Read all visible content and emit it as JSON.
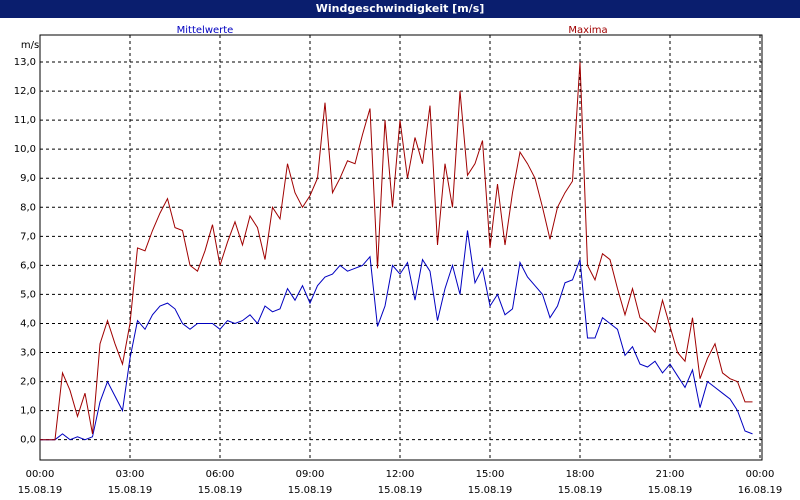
{
  "chart_data": {
    "type": "line",
    "title": "Windgeschwindigkeit [m/s]",
    "y_label": "m/s",
    "x": [
      0,
      0.25,
      0.5,
      0.75,
      1,
      1.25,
      1.5,
      1.75,
      2,
      2.25,
      2.5,
      2.75,
      3,
      3.25,
      3.5,
      3.75,
      4,
      4.25,
      4.5,
      4.75,
      5,
      5.25,
      5.5,
      5.75,
      6,
      6.25,
      6.5,
      6.75,
      7,
      7.25,
      7.5,
      7.75,
      8,
      8.25,
      8.5,
      8.75,
      9,
      9.25,
      9.5,
      9.75,
      10,
      10.25,
      10.5,
      10.75,
      11,
      11.25,
      11.5,
      11.75,
      12,
      12.25,
      12.5,
      12.75,
      13,
      13.25,
      13.5,
      13.75,
      14,
      14.25,
      14.5,
      14.75,
      15,
      15.25,
      15.5,
      15.75,
      16,
      16.25,
      16.5,
      16.75,
      17,
      17.25,
      17.5,
      17.75,
      18,
      18.25,
      18.5,
      18.75,
      19,
      19.25,
      19.5,
      19.75,
      20,
      20.25,
      20.5,
      20.75,
      21,
      21.25,
      21.5,
      21.75,
      22,
      22.25,
      22.5,
      22.75,
      23,
      23.25,
      23.5,
      23.75
    ],
    "xlim": [
      0,
      24
    ],
    "xticks": [
      {
        "value": 0,
        "label": [
          "00:00",
          "15.08.19"
        ]
      },
      {
        "value": 3,
        "label": [
          "03:00",
          "15.08.19"
        ]
      },
      {
        "value": 6,
        "label": [
          "06:00",
          "15.08.19"
        ]
      },
      {
        "value": 9,
        "label": [
          "09:00",
          "15.08.19"
        ]
      },
      {
        "value": 12,
        "label": [
          "12:00",
          "15.08.19"
        ]
      },
      {
        "value": 15,
        "label": [
          "15:00",
          "15.08.19"
        ]
      },
      {
        "value": 18,
        "label": [
          "18:00",
          "15.08.19"
        ]
      },
      {
        "value": 21,
        "label": [
          "21:00",
          "15.08.19"
        ]
      },
      {
        "value": 24,
        "label": [
          "00:00",
          "16.08.19"
        ]
      }
    ],
    "ylim": [
      -0.7,
      13.93
    ],
    "yticks": [
      {
        "value": 0,
        "label": "0,0"
      },
      {
        "value": 1,
        "label": "1,0"
      },
      {
        "value": 2,
        "label": "2,0"
      },
      {
        "value": 3,
        "label": "3,0"
      },
      {
        "value": 4,
        "label": "4,0"
      },
      {
        "value": 5,
        "label": "5,0"
      },
      {
        "value": 6,
        "label": "6,0"
      },
      {
        "value": 7,
        "label": "7,0"
      },
      {
        "value": 8,
        "label": "8,0"
      },
      {
        "value": 9,
        "label": "9,0"
      },
      {
        "value": 10,
        "label": "10,0"
      },
      {
        "value": 11,
        "label": "11,0"
      },
      {
        "value": 12,
        "label": "12,0"
      },
      {
        "value": 13,
        "label": "13,0"
      }
    ],
    "grid": true,
    "series": [
      {
        "name": "Mittelwerte",
        "color": "#0000c0",
        "values": [
          0,
          0,
          0,
          0.2,
          0,
          0.1,
          0,
          0.1,
          1.3,
          2.0,
          1.5,
          1.0,
          2.8,
          4.1,
          3.8,
          4.3,
          4.6,
          4.7,
          4.5,
          4.0,
          3.8,
          4.0,
          4.0,
          4.0,
          3.8,
          4.1,
          4.0,
          4.1,
          4.3,
          4.0,
          4.6,
          4.4,
          4.5,
          5.2,
          4.8,
          5.3,
          4.7,
          5.3,
          5.6,
          5.7,
          6.0,
          5.8,
          5.9,
          6.0,
          6.3,
          3.9,
          4.6,
          6.0,
          5.7,
          6.1,
          4.8,
          6.2,
          5.8,
          4.1,
          5.2,
          6.0,
          5.0,
          7.2,
          5.4,
          5.9,
          4.6,
          5.0,
          4.3,
          4.5,
          6.1,
          5.6,
          5.3,
          5.0,
          4.2,
          4.6,
          5.4,
          5.5,
          6.2,
          3.5,
          3.5,
          4.2,
          4.0,
          3.8,
          2.9,
          3.2,
          2.6,
          2.5,
          2.7,
          2.3,
          2.6,
          2.2,
          1.8,
          2.4,
          1.1,
          2.0,
          1.8,
          1.6,
          1.4,
          1.0,
          0.3,
          0.2
        ]
      },
      {
        "name": "Maxima",
        "color": "#a00000",
        "values": [
          0,
          0,
          0,
          2.3,
          1.7,
          0.8,
          1.6,
          0.2,
          3.3,
          4.1,
          3.3,
          2.6,
          4.0,
          6.6,
          6.5,
          7.2,
          7.8,
          8.3,
          7.3,
          7.2,
          6.0,
          5.8,
          6.5,
          7.4,
          6.0,
          6.8,
          7.5,
          6.7,
          7.7,
          7.3,
          6.2,
          8.0,
          7.6,
          9.5,
          8.5,
          8.0,
          8.4,
          9.0,
          11.6,
          8.5,
          9.0,
          9.6,
          9.5,
          10.5,
          11.4,
          5.9,
          11.0,
          8.0,
          11.0,
          9.0,
          10.4,
          9.5,
          11.5,
          6.7,
          9.5,
          8.0,
          12.0,
          9.1,
          9.5,
          10.3,
          6.6,
          8.8,
          6.7,
          8.5,
          9.9,
          9.5,
          9.0,
          8.0,
          6.9,
          8.0,
          8.5,
          8.9,
          13.0,
          6.0,
          5.5,
          6.4,
          6.2,
          5.2,
          4.3,
          5.2,
          4.2,
          4.0,
          3.7,
          4.8,
          3.9,
          3.0,
          2.7,
          4.2,
          2.1,
          2.8,
          3.3,
          2.3,
          2.1,
          2.0,
          1.3,
          1.3
        ]
      }
    ]
  }
}
